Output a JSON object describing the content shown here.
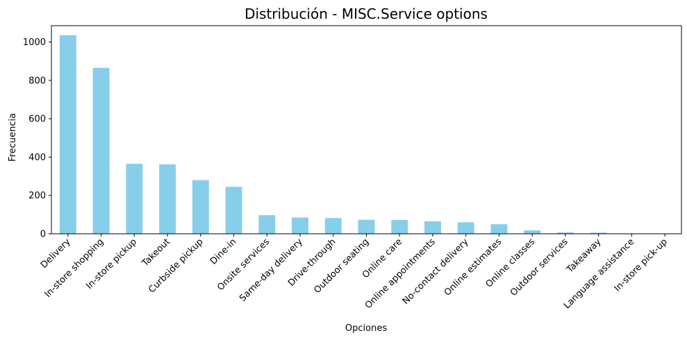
{
  "chart_data": {
    "type": "bar",
    "title": "Distribución - MISC.Service options",
    "xlabel": "Opciones",
    "ylabel": "Frecuencia",
    "ylim": [
      0,
      1085
    ],
    "yticks": [
      0,
      200,
      400,
      600,
      800,
      1000
    ],
    "grid": false,
    "bar_color": "#87CEEB",
    "categories": [
      "Delivery",
      "In-store shopping",
      "In-store pickup",
      "Takeout",
      "Curbside pickup",
      "Dine-in",
      "Onsite services",
      "Same-day delivery",
      "Drive-through",
      "Outdoor seating",
      "Online care",
      "Online appointments",
      "No-contact delivery",
      "Online estimates",
      "Online classes",
      "Outdoor services",
      "Takeaway",
      "Language assistance",
      "In-store pick-up"
    ],
    "values": [
      1035,
      865,
      365,
      362,
      280,
      245,
      97,
      85,
      82,
      73,
      72,
      65,
      60,
      50,
      18,
      7,
      6,
      2,
      2
    ]
  }
}
